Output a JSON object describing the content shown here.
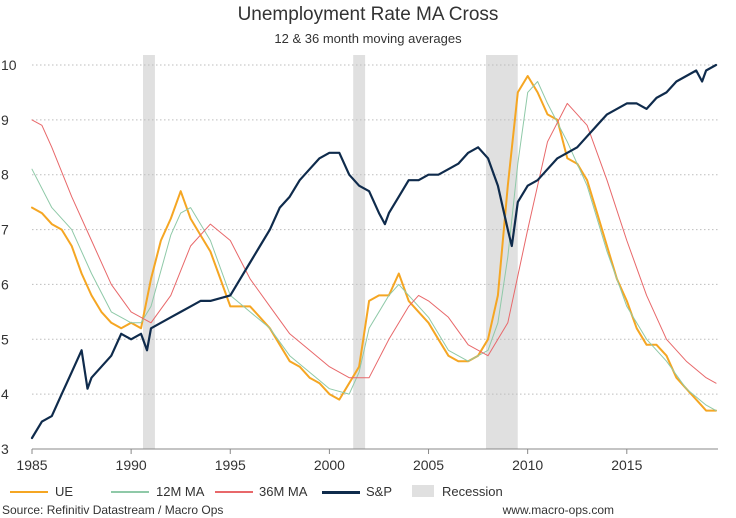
{
  "chart_data": {
    "type": "line",
    "title": "Unemployment Rate MA Cross",
    "subtitle": "12 & 36 month moving averages",
    "xlabel": "",
    "ylabel": "",
    "xlim": [
      1985,
      2019.6
    ],
    "ylim": [
      3,
      10
    ],
    "x_ticks": [
      "1985",
      "1990",
      "1995",
      "2000",
      "2005",
      "2010",
      "2015"
    ],
    "y_ticks": [
      "3",
      "4",
      "5",
      "6",
      "7",
      "8",
      "9",
      "10"
    ],
    "grid": "horizontal dotted",
    "legend_position": "bottom",
    "recessions": [
      [
        1990.6,
        1991.2
      ],
      [
        2001.2,
        2001.8
      ],
      [
        2007.9,
        2009.5
      ]
    ],
    "series": [
      {
        "name": "UE",
        "color": "#f5a623",
        "width": 2,
        "points": [
          [
            1985.0,
            7.4
          ],
          [
            1985.5,
            7.3
          ],
          [
            1986.0,
            7.1
          ],
          [
            1986.5,
            7.0
          ],
          [
            1987.0,
            6.7
          ],
          [
            1987.5,
            6.2
          ],
          [
            1988.0,
            5.8
          ],
          [
            1988.5,
            5.5
          ],
          [
            1989.0,
            5.3
          ],
          [
            1989.5,
            5.2
          ],
          [
            1990.0,
            5.3
          ],
          [
            1990.5,
            5.2
          ],
          [
            1991.0,
            6.1
          ],
          [
            1991.5,
            6.8
          ],
          [
            1992.0,
            7.2
          ],
          [
            1992.5,
            7.7
          ],
          [
            1993.0,
            7.2
          ],
          [
            1993.5,
            6.9
          ],
          [
            1994.0,
            6.6
          ],
          [
            1994.5,
            6.1
          ],
          [
            1995.0,
            5.6
          ],
          [
            1995.5,
            5.6
          ],
          [
            1996.0,
            5.6
          ],
          [
            1996.5,
            5.4
          ],
          [
            1997.0,
            5.2
          ],
          [
            1997.5,
            4.9
          ],
          [
            1998.0,
            4.6
          ],
          [
            1998.5,
            4.5
          ],
          [
            1999.0,
            4.3
          ],
          [
            1999.5,
            4.2
          ],
          [
            2000.0,
            4.0
          ],
          [
            2000.5,
            3.9
          ],
          [
            2001.0,
            4.2
          ],
          [
            2001.5,
            4.5
          ],
          [
            2002.0,
            5.7
          ],
          [
            2002.5,
            5.8
          ],
          [
            2003.0,
            5.8
          ],
          [
            2003.5,
            6.2
          ],
          [
            2004.0,
            5.7
          ],
          [
            2004.5,
            5.5
          ],
          [
            2005.0,
            5.3
          ],
          [
            2005.5,
            5.0
          ],
          [
            2006.0,
            4.7
          ],
          [
            2006.5,
            4.6
          ],
          [
            2007.0,
            4.6
          ],
          [
            2007.5,
            4.7
          ],
          [
            2008.0,
            5.0
          ],
          [
            2008.5,
            5.8
          ],
          [
            2009.0,
            7.8
          ],
          [
            2009.5,
            9.5
          ],
          [
            2010.0,
            9.8
          ],
          [
            2010.5,
            9.5
          ],
          [
            2011.0,
            9.1
          ],
          [
            2011.5,
            9.0
          ],
          [
            2012.0,
            8.3
          ],
          [
            2012.5,
            8.2
          ],
          [
            2013.0,
            7.9
          ],
          [
            2013.5,
            7.3
          ],
          [
            2014.0,
            6.7
          ],
          [
            2014.5,
            6.1
          ],
          [
            2015.0,
            5.7
          ],
          [
            2015.5,
            5.2
          ],
          [
            2016.0,
            4.9
          ],
          [
            2016.5,
            4.9
          ],
          [
            2017.0,
            4.7
          ],
          [
            2017.5,
            4.3
          ],
          [
            2018.0,
            4.1
          ],
          [
            2018.5,
            3.9
          ],
          [
            2019.0,
            3.7
          ],
          [
            2019.5,
            3.7
          ]
        ]
      },
      {
        "name": "12M MA",
        "color": "#8fc9a8",
        "width": 1,
        "points": [
          [
            1985.0,
            8.1
          ],
          [
            1986.0,
            7.4
          ],
          [
            1987.0,
            7.0
          ],
          [
            1988.0,
            6.2
          ],
          [
            1989.0,
            5.5
          ],
          [
            1990.0,
            5.3
          ],
          [
            1990.5,
            5.3
          ],
          [
            1991.0,
            5.6
          ],
          [
            1992.0,
            6.9
          ],
          [
            1992.5,
            7.3
          ],
          [
            1993.0,
            7.4
          ],
          [
            1994.0,
            6.8
          ],
          [
            1995.0,
            5.8
          ],
          [
            1996.0,
            5.5
          ],
          [
            1997.0,
            5.2
          ],
          [
            1998.0,
            4.7
          ],
          [
            1999.0,
            4.4
          ],
          [
            2000.0,
            4.1
          ],
          [
            2001.0,
            4.0
          ],
          [
            2001.5,
            4.4
          ],
          [
            2002.0,
            5.2
          ],
          [
            2003.0,
            5.8
          ],
          [
            2003.5,
            6.0
          ],
          [
            2004.0,
            5.8
          ],
          [
            2005.0,
            5.4
          ],
          [
            2006.0,
            4.8
          ],
          [
            2007.0,
            4.6
          ],
          [
            2008.0,
            4.8
          ],
          [
            2008.5,
            5.3
          ],
          [
            2009.0,
            6.5
          ],
          [
            2009.5,
            8.2
          ],
          [
            2010.0,
            9.5
          ],
          [
            2010.5,
            9.7
          ],
          [
            2011.0,
            9.3
          ],
          [
            2012.0,
            8.6
          ],
          [
            2013.0,
            7.8
          ],
          [
            2014.0,
            6.6
          ],
          [
            2015.0,
            5.6
          ],
          [
            2016.0,
            5.0
          ],
          [
            2017.0,
            4.6
          ],
          [
            2018.0,
            4.1
          ],
          [
            2019.0,
            3.8
          ],
          [
            2019.5,
            3.7
          ]
        ]
      },
      {
        "name": "36M MA",
        "color": "#e8686a",
        "width": 1,
        "points": [
          [
            1985.0,
            9.0
          ],
          [
            1985.5,
            8.9
          ],
          [
            1986.0,
            8.5
          ],
          [
            1987.0,
            7.6
          ],
          [
            1988.0,
            6.8
          ],
          [
            1989.0,
            6.0
          ],
          [
            1990.0,
            5.5
          ],
          [
            1991.0,
            5.3
          ],
          [
            1992.0,
            5.8
          ],
          [
            1993.0,
            6.7
          ],
          [
            1994.0,
            7.1
          ],
          [
            1995.0,
            6.8
          ],
          [
            1996.0,
            6.1
          ],
          [
            1997.0,
            5.6
          ],
          [
            1998.0,
            5.1
          ],
          [
            1999.0,
            4.8
          ],
          [
            2000.0,
            4.5
          ],
          [
            2001.0,
            4.3
          ],
          [
            2002.0,
            4.3
          ],
          [
            2003.0,
            5.0
          ],
          [
            2004.0,
            5.6
          ],
          [
            2004.5,
            5.8
          ],
          [
            2005.0,
            5.7
          ],
          [
            2006.0,
            5.4
          ],
          [
            2007.0,
            4.9
          ],
          [
            2008.0,
            4.7
          ],
          [
            2009.0,
            5.3
          ],
          [
            2010.0,
            7.0
          ],
          [
            2011.0,
            8.6
          ],
          [
            2012.0,
            9.3
          ],
          [
            2013.0,
            8.9
          ],
          [
            2014.0,
            7.9
          ],
          [
            2015.0,
            6.8
          ],
          [
            2016.0,
            5.8
          ],
          [
            2017.0,
            5.0
          ],
          [
            2018.0,
            4.6
          ],
          [
            2019.0,
            4.3
          ],
          [
            2019.5,
            4.2
          ]
        ]
      },
      {
        "name": "S&P",
        "color": "#0f2b4c",
        "width": 2.2,
        "points": [
          [
            1985.0,
            3.2
          ],
          [
            1985.5,
            3.5
          ],
          [
            1986.0,
            3.6
          ],
          [
            1986.5,
            4.0
          ],
          [
            1987.0,
            4.4
          ],
          [
            1987.5,
            4.8
          ],
          [
            1987.8,
            4.1
          ],
          [
            1988.0,
            4.3
          ],
          [
            1988.5,
            4.5
          ],
          [
            1989.0,
            4.7
          ],
          [
            1989.5,
            5.1
          ],
          [
            1990.0,
            5.0
          ],
          [
            1990.5,
            5.1
          ],
          [
            1990.8,
            4.8
          ],
          [
            1991.0,
            5.2
          ],
          [
            1991.5,
            5.3
          ],
          [
            1992.0,
            5.4
          ],
          [
            1992.5,
            5.5
          ],
          [
            1993.0,
            5.6
          ],
          [
            1993.5,
            5.7
          ],
          [
            1994.0,
            5.7
          ],
          [
            1995.0,
            5.8
          ],
          [
            1995.5,
            6.1
          ],
          [
            1996.0,
            6.4
          ],
          [
            1996.5,
            6.7
          ],
          [
            1997.0,
            7.0
          ],
          [
            1997.5,
            7.4
          ],
          [
            1998.0,
            7.6
          ],
          [
            1998.5,
            7.9
          ],
          [
            1999.0,
            8.1
          ],
          [
            1999.5,
            8.3
          ],
          [
            2000.0,
            8.4
          ],
          [
            2000.5,
            8.4
          ],
          [
            2001.0,
            8.0
          ],
          [
            2001.5,
            7.8
          ],
          [
            2002.0,
            7.7
          ],
          [
            2002.5,
            7.3
          ],
          [
            2002.8,
            7.1
          ],
          [
            2003.0,
            7.3
          ],
          [
            2003.5,
            7.6
          ],
          [
            2004.0,
            7.9
          ],
          [
            2004.5,
            7.9
          ],
          [
            2005.0,
            8.0
          ],
          [
            2005.5,
            8.0
          ],
          [
            2006.0,
            8.1
          ],
          [
            2006.5,
            8.2
          ],
          [
            2007.0,
            8.4
          ],
          [
            2007.5,
            8.5
          ],
          [
            2008.0,
            8.3
          ],
          [
            2008.5,
            7.8
          ],
          [
            2009.0,
            7.0
          ],
          [
            2009.2,
            6.7
          ],
          [
            2009.5,
            7.5
          ],
          [
            2010.0,
            7.8
          ],
          [
            2010.5,
            7.9
          ],
          [
            2011.0,
            8.1
          ],
          [
            2011.5,
            8.3
          ],
          [
            2012.0,
            8.4
          ],
          [
            2012.5,
            8.5
          ],
          [
            2013.0,
            8.7
          ],
          [
            2013.5,
            8.9
          ],
          [
            2014.0,
            9.1
          ],
          [
            2014.5,
            9.2
          ],
          [
            2015.0,
            9.3
          ],
          [
            2015.5,
            9.3
          ],
          [
            2016.0,
            9.2
          ],
          [
            2016.5,
            9.4
          ],
          [
            2017.0,
            9.5
          ],
          [
            2017.5,
            9.7
          ],
          [
            2018.0,
            9.8
          ],
          [
            2018.5,
            9.9
          ],
          [
            2018.8,
            9.7
          ],
          [
            2019.0,
            9.9
          ],
          [
            2019.5,
            10.0
          ]
        ]
      }
    ],
    "legend": {
      "ue": "UE",
      "ma12": "12M MA",
      "ma36": "36M MA",
      "sp": "S&P",
      "recession": "Recession"
    }
  },
  "footer": {
    "source": "Source: Refinitiv Datastream / Macro Ops",
    "website": "www.macro-ops.com"
  },
  "colors": {
    "ue": "#f5a623",
    "ma12": "#8fc9a8",
    "ma36": "#e8686a",
    "sp": "#0f2b4c",
    "recession": "#e0e0e0"
  }
}
